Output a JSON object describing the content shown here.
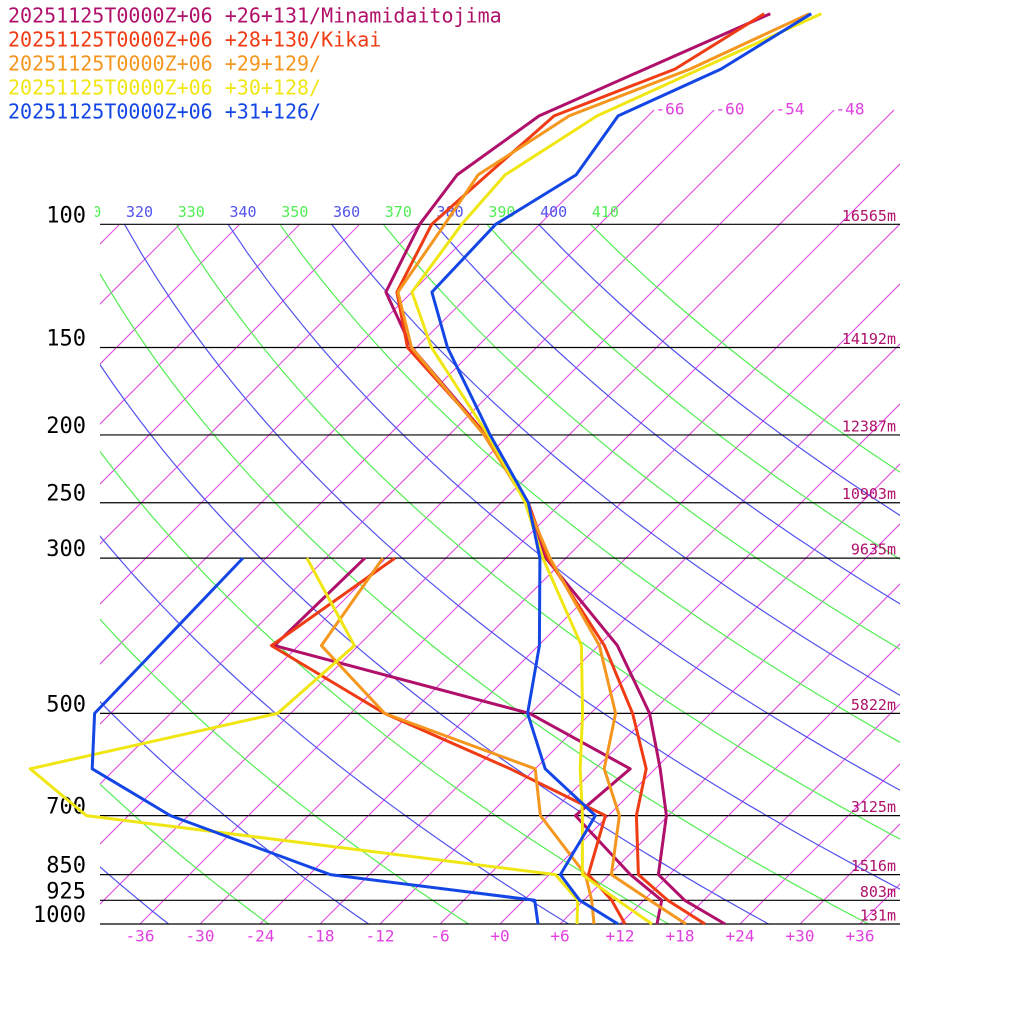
{
  "chart_data": {
    "type": "skewt",
    "y_scale": "log",
    "skew_deg": 45,
    "ylim": [
      1000,
      47.8
    ],
    "xlim": [
      -40,
      40
    ],
    "yticks": [
      100,
      150,
      200,
      250,
      300,
      500,
      700,
      850,
      925,
      1000
    ],
    "height_labels": [
      "16565m",
      "14192m",
      "12387m",
      "10903m",
      "9635m",
      "5822m",
      "3125m",
      "1516m",
      "803m",
      "131m"
    ],
    "xticks": [
      -36,
      -30,
      -24,
      -18,
      -12,
      -6,
      {
        "value": 0,
        "label": "+0"
      },
      {
        "value": 6,
        "label": "+6"
      },
      {
        "value": 12,
        "label": "+12"
      },
      {
        "value": 18,
        "label": "+18"
      },
      {
        "value": 24,
        "label": "+24"
      },
      {
        "value": 30,
        "label": "+30"
      },
      {
        "value": 36,
        "label": "+36"
      }
    ],
    "isotherm_labels": [
      -66,
      -60,
      -54,
      -48
    ],
    "isotherm_color": "#e040e0",
    "dry_adiabats": [
      240,
      250,
      260,
      270,
      280,
      290,
      300,
      310,
      320,
      330,
      340,
      350,
      360,
      370,
      380,
      390,
      400,
      410
    ],
    "dry_adiabat_colors": [
      "#5252ee",
      "#52ee52"
    ],
    "pressure_levels": [
      1000,
      925,
      850,
      700,
      600,
      500,
      400,
      300,
      250,
      200,
      150,
      125,
      100,
      85,
      70,
      60,
      50
    ],
    "series": [
      {
        "name": "20251125T0000Z+06 +26+131/Minamidaitojima",
        "color": "#b0106a",
        "temperature": [
          22.5,
          16.1,
          10.9,
          5.8,
          0.5,
          -6.1,
          -16.1,
          -32.0,
          -39.5,
          -50.3,
          -66.5,
          -74.6,
          -78.0,
          -79.2,
          -76.9,
          -71.0,
          -64.0
        ],
        "dewpoint": [
          15.7,
          13.8,
          8.1,
          -3.3,
          -2.5,
          -18.1,
          -50.4,
          -50.1,
          null,
          null,
          null,
          null,
          null,
          null,
          null,
          null,
          null
        ]
      },
      {
        "name": "20251125T0000Z+06 +28+130/Kikai",
        "color": "#f03c14",
        "temperature": [
          20.5,
          14.4,
          8.9,
          2.8,
          -0.9,
          -7.8,
          -17.4,
          -31.8,
          -39.3,
          -50.3,
          -66.9,
          -73.5,
          -76.8,
          -76.2,
          -75.4,
          -68.0,
          -64.6
        ],
        "dewpoint": [
          12.5,
          8.8,
          3.9,
          -0.3,
          -14.5,
          -32.6,
          -50.7,
          -47.1,
          null,
          null,
          null,
          null,
          null,
          null,
          null,
          null,
          null
        ]
      },
      {
        "name": "20251125T0000Z+06 +29+129/",
        "color": "#f5961e",
        "temperature": [
          18.6,
          12.6,
          6.2,
          1.1,
          -5.1,
          -9.5,
          -17.9,
          -31.6,
          -39.5,
          -50.5,
          -66.5,
          -73.4,
          -75.5,
          -77.1,
          -73.9,
          -66.5,
          -60.1
        ],
        "dewpoint": [
          9.4,
          6.8,
          3.6,
          -6.8,
          -12.0,
          -32.6,
          -45.7,
          -48.3,
          null,
          null,
          null,
          null,
          null,
          null,
          null,
          null,
          null
        ]
      },
      {
        "name": "20251125T0000Z+06 +30+128/",
        "color": "#f0e614",
        "temperature": [
          15.2,
          9.4,
          3.3,
          -2.6,
          -7.5,
          -12.8,
          -19.7,
          -32.3,
          -39.6,
          -50.1,
          -64.5,
          -72.0,
          -73.8,
          -74.4,
          -71.1,
          -65.5,
          -58.9
        ],
        "dewpoint": [
          7.7,
          5.4,
          0.6,
          -52.2,
          -62.5,
          -43.3,
          -42.4,
          -55.9,
          null,
          null,
          null,
          null,
          null,
          null,
          null,
          null,
          null
        ]
      },
      {
        "name": "20251125T0000Z+06 +31+126/",
        "color": "#1446e6",
        "temperature": [
          11.8,
          5.6,
          1.1,
          -1.3,
          -11.0,
          -18.3,
          -23.9,
          -32.6,
          -39.3,
          -49.9,
          -62.9,
          -70.0,
          -70.4,
          -67.3,
          -69.0,
          -63.4,
          -59.9
        ],
        "dewpoint": [
          3.8,
          1.1,
          -21.9,
          -43.8,
          -56.3,
          -61.6,
          -61.9,
          -62.3,
          null,
          null,
          null,
          null,
          null,
          null,
          null,
          null,
          null
        ]
      }
    ]
  }
}
